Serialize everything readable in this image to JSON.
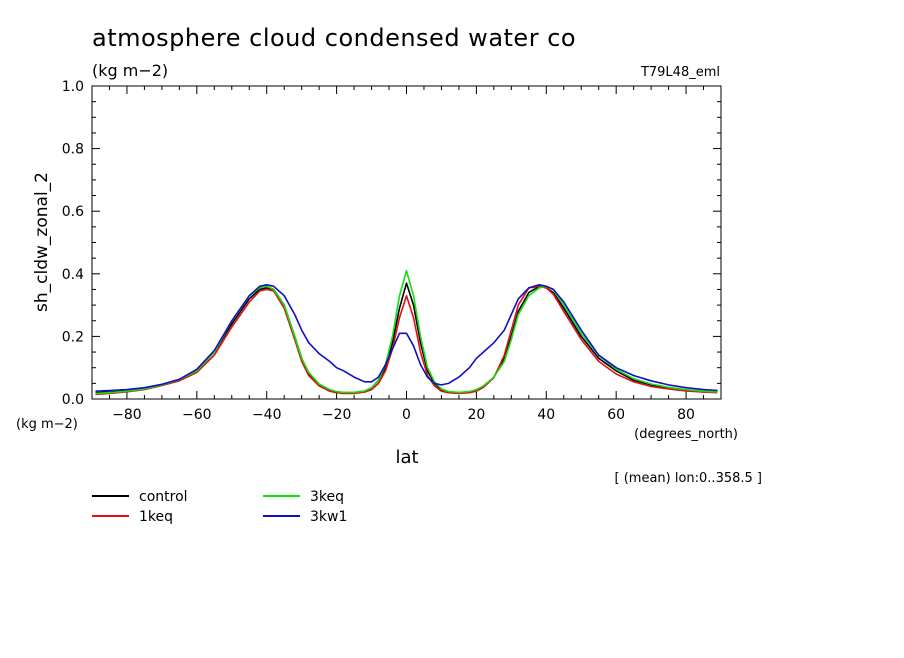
{
  "chart_data": {
    "type": "line",
    "title": "atmosphere cloud condensed water co",
    "units_label": "(kg m−2)",
    "experiment_label": "T79L48_eml",
    "ylabel": "sh_cldw_zonal_2",
    "y_units_label": "(kg m−2)",
    "xlabel": "lat",
    "x_units_label": "(degrees_north)",
    "mean_note": "[ (mean) lon:0..358.5 ]",
    "xlim": [
      -90,
      90
    ],
    "ylim": [
      0.0,
      1.0
    ],
    "xticks": [
      -80,
      -60,
      -40,
      -20,
      0,
      20,
      40,
      60,
      80
    ],
    "xtick_labels": [
      "−80",
      "−60",
      "−40",
      "−20",
      "0",
      "20",
      "40",
      "60",
      "80"
    ],
    "yticks": [
      0.0,
      0.2,
      0.4,
      0.6,
      0.8,
      1.0
    ],
    "ytick_labels": [
      "0.0",
      "0.2",
      "0.4",
      "0.6",
      "0.8",
      "1.0"
    ],
    "x": [
      -89,
      -85,
      -80,
      -75,
      -70,
      -65,
      -60,
      -55,
      -50,
      -45,
      -42,
      -40,
      -38,
      -35,
      -32,
      -30,
      -28,
      -25,
      -22,
      -20,
      -18,
      -15,
      -12,
      -10,
      -8,
      -6,
      -4,
      -2,
      0,
      2,
      4,
      6,
      8,
      10,
      12,
      15,
      18,
      20,
      22,
      25,
      28,
      30,
      32,
      35,
      38,
      40,
      42,
      45,
      50,
      55,
      60,
      65,
      70,
      75,
      80,
      85,
      89
    ],
    "series": [
      {
        "name": "control",
        "color": "#000000",
        "values": [
          0.02,
          0.022,
          0.026,
          0.033,
          0.045,
          0.06,
          0.09,
          0.15,
          0.24,
          0.32,
          0.35,
          0.355,
          0.35,
          0.3,
          0.2,
          0.13,
          0.08,
          0.045,
          0.028,
          0.022,
          0.02,
          0.02,
          0.025,
          0.035,
          0.06,
          0.1,
          0.18,
          0.29,
          0.37,
          0.3,
          0.18,
          0.09,
          0.05,
          0.03,
          0.022,
          0.02,
          0.022,
          0.028,
          0.04,
          0.07,
          0.13,
          0.2,
          0.28,
          0.34,
          0.36,
          0.355,
          0.34,
          0.29,
          0.2,
          0.13,
          0.09,
          0.06,
          0.045,
          0.035,
          0.028,
          0.024,
          0.022
        ]
      },
      {
        "name": "1keq",
        "color": "#e01010",
        "values": [
          0.015,
          0.018,
          0.023,
          0.03,
          0.043,
          0.058,
          0.085,
          0.14,
          0.23,
          0.31,
          0.345,
          0.35,
          0.345,
          0.29,
          0.19,
          0.12,
          0.075,
          0.042,
          0.025,
          0.02,
          0.018,
          0.018,
          0.022,
          0.03,
          0.05,
          0.09,
          0.16,
          0.26,
          0.33,
          0.26,
          0.15,
          0.075,
          0.042,
          0.025,
          0.02,
          0.018,
          0.02,
          0.025,
          0.037,
          0.068,
          0.14,
          0.22,
          0.3,
          0.355,
          0.36,
          0.355,
          0.335,
          0.28,
          0.19,
          0.12,
          0.08,
          0.055,
          0.04,
          0.032,
          0.026,
          0.022,
          0.02
        ]
      },
      {
        "name": "3keq",
        "color": "#10e010",
        "values": [
          0.018,
          0.02,
          0.025,
          0.032,
          0.045,
          0.062,
          0.09,
          0.15,
          0.25,
          0.33,
          0.355,
          0.36,
          0.35,
          0.3,
          0.2,
          0.13,
          0.085,
          0.048,
          0.03,
          0.024,
          0.021,
          0.021,
          0.026,
          0.036,
          0.06,
          0.11,
          0.2,
          0.33,
          0.41,
          0.33,
          0.2,
          0.1,
          0.055,
          0.032,
          0.024,
          0.021,
          0.024,
          0.03,
          0.042,
          0.07,
          0.12,
          0.19,
          0.27,
          0.33,
          0.355,
          0.36,
          0.35,
          0.3,
          0.21,
          0.14,
          0.095,
          0.065,
          0.048,
          0.037,
          0.03,
          0.025,
          0.022
        ]
      },
      {
        "name": "3kw1",
        "color": "#1010c0",
        "values": [
          0.025,
          0.027,
          0.03,
          0.036,
          0.047,
          0.063,
          0.095,
          0.155,
          0.25,
          0.33,
          0.36,
          0.365,
          0.36,
          0.33,
          0.27,
          0.22,
          0.18,
          0.145,
          0.12,
          0.1,
          0.09,
          0.07,
          0.055,
          0.055,
          0.07,
          0.11,
          0.16,
          0.21,
          0.21,
          0.17,
          0.11,
          0.07,
          0.05,
          0.045,
          0.05,
          0.07,
          0.1,
          0.13,
          0.15,
          0.18,
          0.22,
          0.27,
          0.32,
          0.355,
          0.365,
          0.36,
          0.35,
          0.31,
          0.22,
          0.14,
          0.1,
          0.075,
          0.058,
          0.045,
          0.036,
          0.03,
          0.027
        ]
      }
    ],
    "legend": [
      {
        "name": "control",
        "color": "#000000"
      },
      {
        "name": "1keq",
        "color": "#e01010"
      },
      {
        "name": "3keq",
        "color": "#10e010"
      },
      {
        "name": "3kw1",
        "color": "#1010c0"
      }
    ],
    "legend_position": "bottom-left",
    "grid": false
  }
}
